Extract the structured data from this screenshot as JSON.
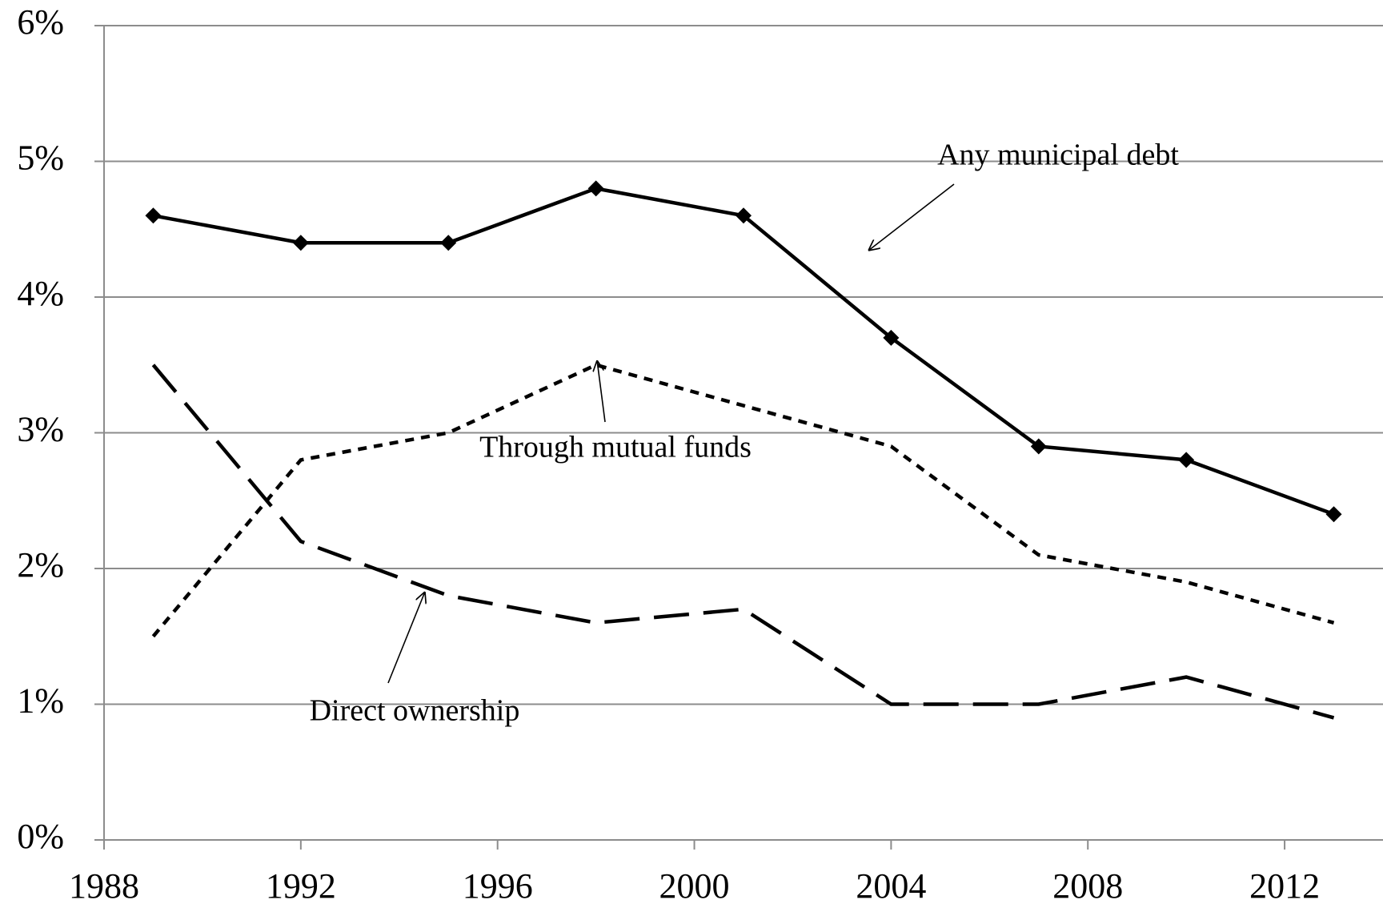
{
  "chart_data": {
    "type": "line",
    "x": [
      1989,
      1992,
      1995,
      1998,
      2001,
      2004,
      2007,
      2010,
      2013
    ],
    "series": [
      {
        "name": "Any municipal debt",
        "color": "#000000",
        "dash": "solid",
        "marker": "diamond",
        "values": [
          4.6,
          4.4,
          4.4,
          4.8,
          4.6,
          3.7,
          2.9,
          2.8,
          2.4
        ]
      },
      {
        "name": "Through mutual funds",
        "color": "#000000",
        "dash": "dotted",
        "marker": "none",
        "values": [
          1.5,
          2.8,
          3.0,
          3.5,
          3.2,
          2.9,
          2.1,
          1.9,
          1.6
        ]
      },
      {
        "name": "Direct ownership",
        "color": "#000000",
        "dash": "dashed",
        "marker": "none",
        "values": [
          3.5,
          2.2,
          1.8,
          1.6,
          1.7,
          1.0,
          1.0,
          1.2,
          0.9
        ]
      }
    ],
    "xlim": [
      1988,
      2014
    ],
    "xticks": [
      1988,
      1992,
      1996,
      2000,
      2004,
      2008,
      2012
    ],
    "ylim": [
      0,
      6
    ],
    "yticks": [
      {
        "value": 0,
        "label": "0%"
      },
      {
        "value": 1,
        "label": "1%"
      },
      {
        "value": 2,
        "label": "2%"
      },
      {
        "value": 3,
        "label": "3%"
      },
      {
        "value": 4,
        "label": "4%"
      },
      {
        "value": 5,
        "label": "5%"
      },
      {
        "value": 6,
        "label": "6%"
      }
    ],
    "grid": true
  }
}
